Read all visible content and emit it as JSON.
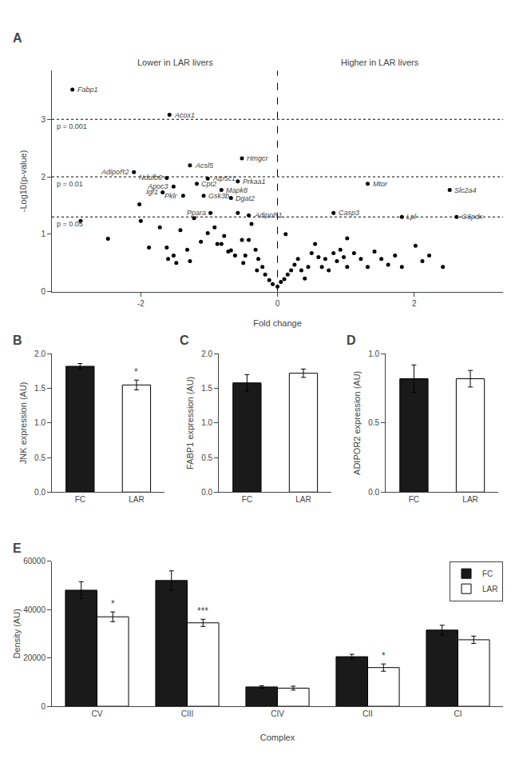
{
  "chart_data": [
    {
      "type": "scatter",
      "title": "A",
      "xlabel": "Fold change",
      "ylabel": "-Log10(p-value)",
      "x": [
        -2.88,
        -2.48,
        -2.02,
        -2.0,
        -1.88,
        -1.72,
        -1.62,
        -1.6,
        -1.52,
        -1.48,
        -1.42,
        -1.32,
        -1.28,
        -1.22,
        -1.12,
        -1.02,
        -0.92,
        -0.88,
        -0.82,
        -0.78,
        -0.72,
        -0.68,
        -0.62,
        -0.52,
        -0.5,
        -0.47,
        -0.42,
        -0.38,
        -0.32,
        -0.3,
        -0.28,
        -0.22,
        -0.18,
        -0.12,
        -0.07,
        0.0,
        0.05,
        0.1,
        0.15,
        0.2,
        0.25,
        0.3,
        0.35,
        0.4,
        0.45,
        0.5,
        0.55,
        0.6,
        0.65,
        0.7,
        0.75,
        0.82,
        0.87,
        0.92,
        0.97,
        1.02,
        1.02,
        1.12,
        1.22,
        1.32,
        1.42,
        1.52,
        1.62,
        1.72,
        1.82,
        2.02,
        2.12,
        2.22,
        2.42,
        0.12,
        -0.58,
        -3.0,
        -1.58,
        -2.1,
        -1.28,
        -0.52,
        -1.62,
        -1.52,
        -1.18,
        -1.02,
        -0.58,
        -1.68,
        -1.38,
        -1.08,
        -0.82,
        -0.68,
        -0.98,
        -0.42,
        1.32,
        0.82,
        1.82,
        2.52,
        2.62
      ],
      "values": [
        1.23,
        0.92,
        1.52,
        1.23,
        0.77,
        1.12,
        0.77,
        0.57,
        0.63,
        0.5,
        1.07,
        0.73,
        0.53,
        1.28,
        0.87,
        1.02,
        1.12,
        0.83,
        0.83,
        0.97,
        0.7,
        0.72,
        0.63,
        0.9,
        0.5,
        0.63,
        0.9,
        1.18,
        0.73,
        0.37,
        0.57,
        0.43,
        0.3,
        0.2,
        0.13,
        0.09,
        0.17,
        0.22,
        0.3,
        0.37,
        0.47,
        0.57,
        0.37,
        0.23,
        0.43,
        0.67,
        0.83,
        0.6,
        0.43,
        0.57,
        0.37,
        0.67,
        0.53,
        0.73,
        0.6,
        0.93,
        0.43,
        0.67,
        0.57,
        0.43,
        0.7,
        0.57,
        0.47,
        0.63,
        0.43,
        0.8,
        0.53,
        0.63,
        0.43,
        1.0,
        1.37,
        3.52,
        3.08,
        2.08,
        2.2,
        2.32,
        1.98,
        1.83,
        1.88,
        1.97,
        1.92,
        1.73,
        1.67,
        1.67,
        1.77,
        1.63,
        1.37,
        1.33,
        1.88,
        1.37,
        1.3,
        1.77,
        1.3
      ],
      "color": "#000000",
      "xlim": [
        -3.3,
        3.3
      ],
      "ylim": [
        0,
        3.85
      ],
      "xticks": [
        -2,
        0,
        2
      ],
      "yticks": [
        0,
        1,
        2,
        3
      ],
      "grid": false,
      "hlines": [
        {
          "value": 1.301,
          "label": "p = 0.05"
        },
        {
          "value": 2.0,
          "label": "p = 0.01"
        },
        {
          "value": 3.0,
          "label": "p = 0.001"
        }
      ],
      "vlines": [
        0
      ],
      "annotations": [
        {
          "text": "Lower in LAR livers",
          "x": -1.5
        },
        {
          "text": "Higher in LAR livers",
          "x": 1.5
        },
        {
          "text": "Fabp1",
          "x": -3.0,
          "y": 3.52,
          "side": "right"
        },
        {
          "text": "Acox1",
          "x": -1.58,
          "y": 3.08,
          "side": "right"
        },
        {
          "text": "AdipoR2",
          "x": -2.1,
          "y": 2.08,
          "side": "left"
        },
        {
          "text": "Acsl5",
          "x": -1.28,
          "y": 2.2,
          "side": "right"
        },
        {
          "text": "Hmgcr",
          "x": -0.52,
          "y": 2.32,
          "side": "right"
        },
        {
          "text": "Ndufb6",
          "x": -1.62,
          "y": 1.98,
          "side": "left"
        },
        {
          "text": "Apoc3",
          "x": -1.52,
          "y": 1.83,
          "side": "left"
        },
        {
          "text": "Cpt2",
          "x": -1.18,
          "y": 1.88,
          "side": "right"
        },
        {
          "text": "Atp5c1",
          "x": -1.02,
          "y": 1.97,
          "side": "right"
        },
        {
          "text": "Prkaa1",
          "x": -0.58,
          "y": 1.92,
          "side": "right"
        },
        {
          "text": "Igf1",
          "x": -1.68,
          "y": 1.73,
          "side": "left"
        },
        {
          "text": "Pklr",
          "x": -1.38,
          "y": 1.67,
          "side": "left"
        },
        {
          "text": "Gsk3b",
          "x": -1.08,
          "y": 1.67,
          "side": "right"
        },
        {
          "text": "Mapk8",
          "x": -0.82,
          "y": 1.77,
          "side": "right"
        },
        {
          "text": "Dgat2",
          "x": -0.68,
          "y": 1.63,
          "side": "right"
        },
        {
          "text": "Ppara",
          "x": -0.98,
          "y": 1.37,
          "side": "left"
        },
        {
          "text": "AdipoR1",
          "x": -0.42,
          "y": 1.33,
          "side": "right"
        },
        {
          "text": "Mtor",
          "x": 1.32,
          "y": 1.88,
          "side": "right"
        },
        {
          "text": "Casp3",
          "x": 0.82,
          "y": 1.37,
          "side": "right"
        },
        {
          "text": "Lpl",
          "x": 1.82,
          "y": 1.3,
          "side": "right"
        },
        {
          "text": "Slc2a4",
          "x": 2.52,
          "y": 1.77,
          "side": "right"
        },
        {
          "text": "G6pdx",
          "x": 2.62,
          "y": 1.3,
          "side": "right"
        }
      ]
    },
    {
      "type": "bar",
      "title": "B",
      "ylabel": "JNK expression (AU)",
      "categories": [
        "FC",
        "LAR"
      ],
      "values": [
        1.82,
        1.55
      ],
      "errors": [
        0.04,
        0.07
      ],
      "colors": [
        "#1a1a1a",
        "#ffffff"
      ],
      "ylim": [
        0,
        2.0
      ],
      "yticks": [
        {
          "value": 0,
          "label": "0.0"
        },
        0.5,
        {
          "value": 1,
          "label": "1.0"
        },
        1.5,
        {
          "value": 2,
          "label": "2.0"
        }
      ],
      "grid": false,
      "annotations": [
        {
          "text": "*",
          "x": "LAR"
        }
      ]
    },
    {
      "type": "bar",
      "title": "C",
      "ylabel": "FABP1 expression (AU)",
      "categories": [
        "FC",
        "LAR"
      ],
      "values": [
        1.58,
        1.72
      ],
      "errors": [
        0.12,
        0.06
      ],
      "colors": [
        "#1a1a1a",
        "#ffffff"
      ],
      "ylim": [
        0,
        2.0
      ],
      "yticks": [
        {
          "value": 0,
          "label": "0.0"
        },
        0.5,
        {
          "value": 1,
          "label": "1.0"
        },
        1.5,
        {
          "value": 2,
          "label": "2.0"
        }
      ],
      "grid": false
    },
    {
      "type": "bar",
      "title": "D",
      "ylabel": "ADIPOR2 expression (AU)",
      "categories": [
        "FC",
        "LAR"
      ],
      "values": [
        0.82,
        0.82
      ],
      "errors": [
        0.1,
        0.06
      ],
      "colors": [
        "#1a1a1a",
        "#ffffff"
      ],
      "ylim": [
        0,
        1.0
      ],
      "yticks": [
        {
          "value": 0,
          "label": "0.0"
        },
        0.5,
        {
          "value": 1,
          "label": "1.0"
        }
      ],
      "grid": false
    },
    {
      "type": "bar",
      "title": "E",
      "xlabel": "Complex",
      "ylabel": "Density (AU)",
      "categories": [
        "CV",
        "CIII",
        "CIV",
        "CII",
        "CI"
      ],
      "series": [
        {
          "name": "FC",
          "color": "#1a1a1a",
          "values": [
            48000,
            52000,
            8000,
            20500,
            31500
          ],
          "errors": [
            3500,
            4000,
            500,
            1000,
            2000
          ]
        },
        {
          "name": "LAR",
          "color": "#ffffff",
          "values": [
            37000,
            34500,
            7500,
            16000,
            27500
          ],
          "errors": [
            2000,
            1500,
            800,
            1500,
            1500
          ]
        }
      ],
      "ylim": [
        0,
        60000
      ],
      "yticks": [
        0,
        20000,
        40000,
        60000
      ],
      "grid": false,
      "legend": "upper right",
      "annotations": [
        {
          "text": "*",
          "x": "CV",
          "series": "LAR"
        },
        {
          "text": "***",
          "x": "CIII",
          "series": "LAR"
        },
        {
          "text": "*",
          "x": "CII",
          "series": "LAR"
        }
      ]
    }
  ]
}
